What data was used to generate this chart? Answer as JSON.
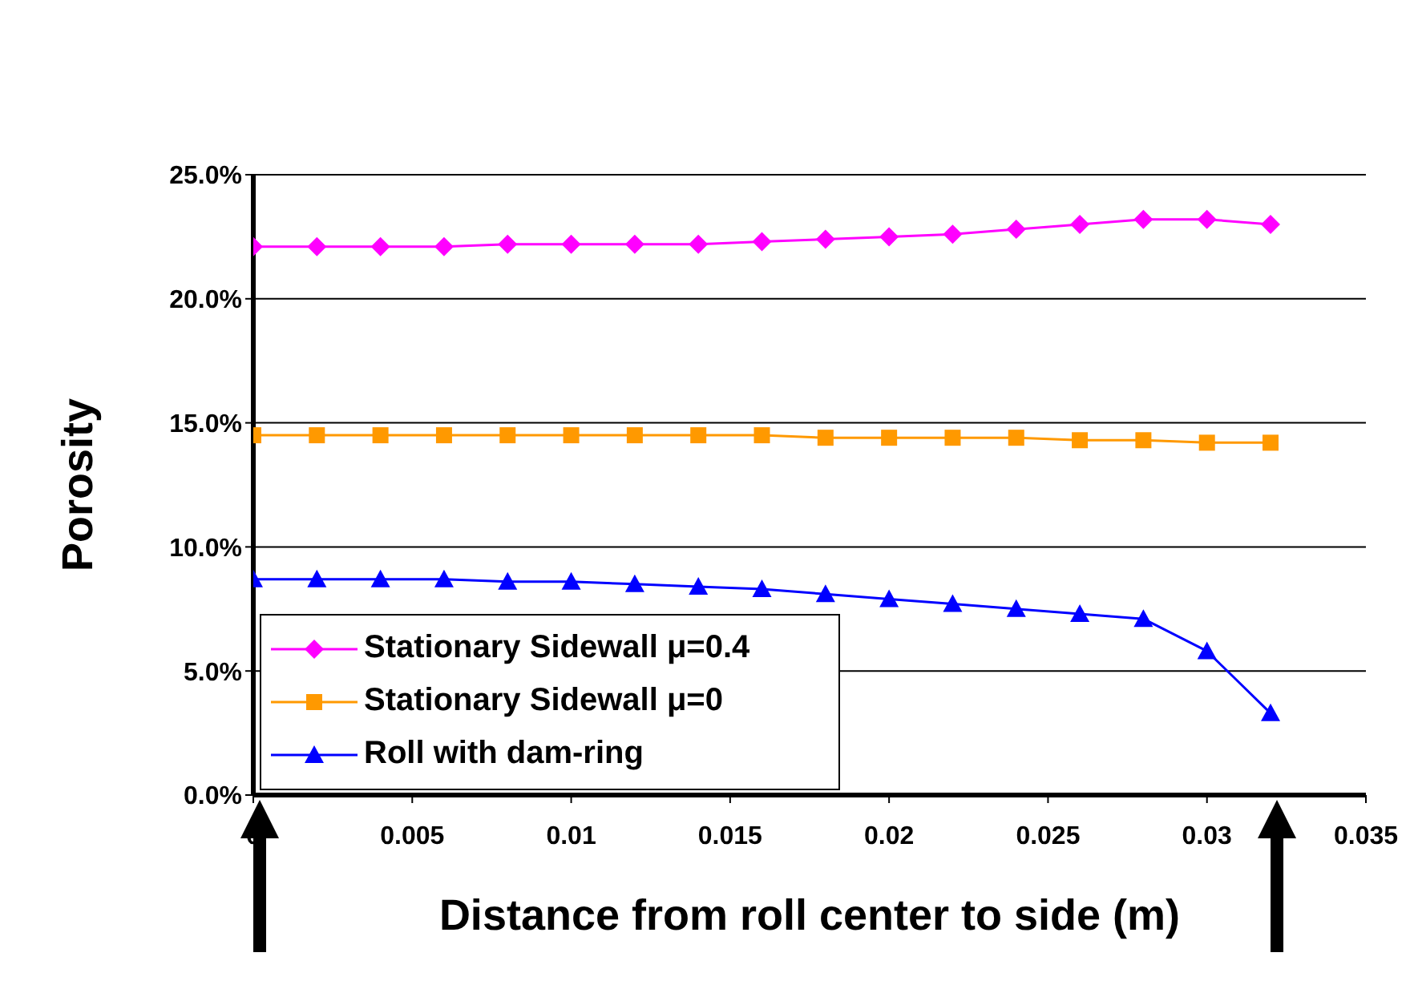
{
  "chart_data": {
    "type": "line",
    "xlabel": "Distance from roll center to side (m)",
    "ylabel": "Porosity",
    "x": [
      0,
      0.002,
      0.004,
      0.006,
      0.008,
      0.01,
      0.012,
      0.014,
      0.016,
      0.018,
      0.02,
      0.022,
      0.024,
      0.026,
      0.028,
      0.03,
      0.032
    ],
    "series": [
      {
        "name": "Stationary Sidewall μ=0.4",
        "color": "#ff00ff",
        "marker": "diamond",
        "values": [
          22.1,
          22.1,
          22.1,
          22.1,
          22.2,
          22.2,
          22.2,
          22.2,
          22.3,
          22.4,
          22.5,
          22.6,
          22.8,
          23.0,
          23.2,
          23.2,
          23.0
        ]
      },
      {
        "name": "Stationary Sidewall μ=0",
        "color": "#ff9900",
        "marker": "square",
        "values": [
          14.5,
          14.5,
          14.5,
          14.5,
          14.5,
          14.5,
          14.5,
          14.5,
          14.5,
          14.4,
          14.4,
          14.4,
          14.4,
          14.3,
          14.3,
          14.2,
          14.2
        ]
      },
      {
        "name": "Roll with dam-ring",
        "color": "#0000ff",
        "marker": "triangle",
        "values": [
          8.7,
          8.7,
          8.7,
          8.7,
          8.6,
          8.6,
          8.5,
          8.4,
          8.3,
          8.1,
          7.9,
          7.7,
          7.5,
          7.3,
          7.1,
          5.8,
          3.3
        ]
      }
    ],
    "xlim": [
      0,
      0.035
    ],
    "xticks": [
      0,
      0.005,
      0.01,
      0.015,
      0.02,
      0.025,
      0.03,
      0.035
    ],
    "ylim": [
      0,
      25
    ],
    "yticks": [
      {
        "value": 0,
        "label": "0.0%"
      },
      {
        "value": 5,
        "label": "5.0%"
      },
      {
        "value": 10,
        "label": "10.0%"
      },
      {
        "value": 15,
        "label": "15.0%"
      },
      {
        "value": 20,
        "label": "20.0%"
      },
      {
        "value": 25,
        "label": "25.0%"
      }
    ],
    "grid": "y",
    "legend": "bottom left",
    "line_style": "solid"
  }
}
